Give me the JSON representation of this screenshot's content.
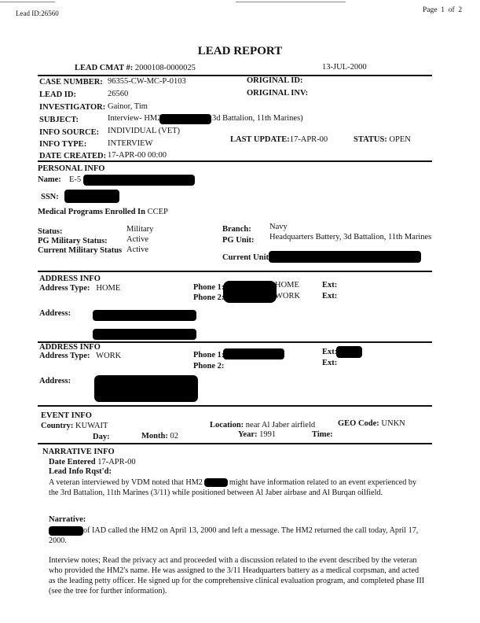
{
  "header": {
    "lead_id_label": "Lead ID:26560",
    "page_label": "Page",
    "page_num": "1",
    "of_label": "of",
    "page_total": "2"
  },
  "title": "LEAD REPORT",
  "cmat": {
    "label": "LEAD CMAT #:",
    "value": "2000108-0000025",
    "date": "13-JUL-2000"
  },
  "case": {
    "case_number_label": "CASE NUMBER:",
    "case_number": "96355-CW-MC-P-0103",
    "lead_id_label": "LEAD ID:",
    "lead_id": "26560",
    "investigator_label": "INVESTIGATOR:",
    "investigator": "Gainor, Tim",
    "subject_label": "SUBJECT:",
    "subject_pre": "Interview- HM2",
    "subject_post": "3d Battalion, 11th Marines)",
    "info_source_label": "INFO SOURCE:",
    "info_source": "INDIVIDUAL (VET)",
    "info_type_label": "INFO TYPE:",
    "info_type": "INTERVIEW",
    "date_created_label": "DATE CREATED:",
    "date_created": "17-APR-00 00:00",
    "original_id_label": "ORIGINAL ID:",
    "original_inv_label": "ORIGINAL INV:",
    "last_update_label": "LAST UPDATE:",
    "last_update": "17-APR-00",
    "status_label": "STATUS:",
    "status": "OPEN"
  },
  "personal": {
    "heading": "PERSONAL INFO",
    "name_label": "Name:",
    "name_pre": "E-5",
    "ssn_label": "SSN:",
    "medical_label": "Medical  Programs Enrolled In",
    "medical": "CCEP",
    "status_label": "Status:",
    "status": "Military",
    "pg_status_label": "PG Military Status:",
    "pg_status": "Active",
    "current_status_label": "Current Military Status",
    "current_status": "Active",
    "branch_label": "Branch:",
    "branch": "Navy",
    "pg_unit_label": "PG Unit:",
    "pg_unit": "Headquarters Battery, 3d Battalion, 11th Marines",
    "current_unit_label": "Current Unit:"
  },
  "address1": {
    "heading": "ADDRESS INFO",
    "type_label": "Address Type:",
    "type": "HOME",
    "phone1_label": "Phone 1:",
    "phone1_type": "HOME",
    "phone2_label": "Phone 2:",
    "phone2_type": "WORK",
    "ext_label": "Ext:",
    "address_label": "Address:"
  },
  "address2": {
    "heading": "ADDRESS INFO",
    "type_label": "Address Type:",
    "type": "WORK",
    "phone1_label": "Phone 1:",
    "phone2_label": "Phone 2:",
    "ext_label": "Ext:",
    "address_label": "Address:"
  },
  "event": {
    "heading": "EVENT INFO",
    "country_label": "Country:",
    "country": "KUWAIT",
    "day_label": "Day:",
    "month_label": "Month:",
    "month": "02",
    "location_label": "Location:",
    "location": "near Al Jaber airfield",
    "year_label": "Year:",
    "year": "1991",
    "time_label": "Time:",
    "geo_label": "GEO Code:",
    "geo": "UNKN"
  },
  "narrative": {
    "heading": "NARRATIVE INFO",
    "date_entered_label": "Date Entered",
    "date_entered": "17-APR-00",
    "lead_info_label": "Lead Info Rqst'd:",
    "lead_info_pre": "A veteran interviewed by VDM noted that HM2",
    "lead_info_post": "might have information related to an event experienced by the 3rd Battalion, 11th Marines (3/11) while positioned between Al Jaber airbase and Al Burqan oilfield.",
    "narrative_label": "Narrative:",
    "narrative_p1": "of IAD called the HM2 on April 13, 2000 and left a message.  The HM2 returned the call today, April 17, 2000.",
    "narrative_p2": "Interview notes; Read the privacy act and proceeded with a discussion related to the event described by the veteran who provided the HM2's name.  He was assigned to the 3/11 Headquarters battery as a medical corpsman, and acted as the leading petty officer.  He signed up for the comprehensive clinical evaluation program, and completed phase III (see the tree for further information)."
  }
}
